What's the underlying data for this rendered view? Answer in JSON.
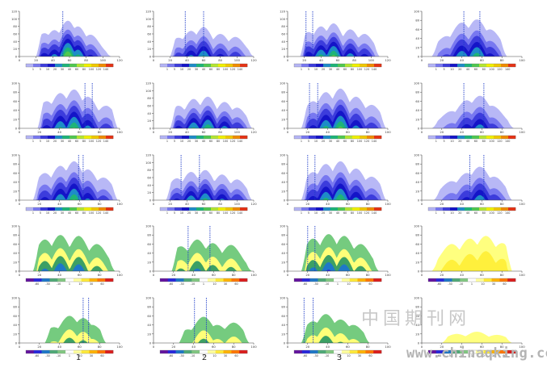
{
  "figure": {
    "column_labels": [
      "1",
      "2",
      "3"
    ],
    "watermark_cn": "中国期刊网",
    "watermark_url": "www.chinaqking.com"
  },
  "palettes": {
    "positive": [
      "#b4b4f5",
      "#7878f0",
      "#3c3cdc",
      "#1414c8",
      "#1e8cc8",
      "#1eb478",
      "#50c850",
      "#b4e632",
      "#f0f000",
      "#f0c800",
      "#f08c00",
      "#e63214"
    ],
    "diverging": [
      "#6414a0",
      "#2828dc",
      "#1e78c8",
      "#50aa78",
      "#82c882",
      "#ffffff",
      "#ffffa0",
      "#ffeb3c",
      "#ffb400",
      "#ff7800",
      "#dc1e1e"
    ]
  },
  "chart_data": [
    {
      "type": "heatmap",
      "row": 1,
      "col": 1,
      "xticks": [
        "0",
        "20",
        "40",
        "60",
        "80",
        "100",
        "120"
      ],
      "yticks": [
        "0",
        "20",
        "40",
        "60",
        "80",
        "100",
        "120"
      ],
      "ylim": [
        0,
        120
      ],
      "xlim": [
        0,
        120
      ],
      "colorbar_ticks": [
        "1",
        "5",
        "10",
        "20",
        "30",
        "40",
        "60",
        "80",
        "100",
        "120",
        "140"
      ],
      "vlines": [
        52
      ],
      "bumps": [
        [
          30,
          62
        ],
        [
          42,
          70
        ],
        [
          58,
          95
        ],
        [
          70,
          80
        ],
        [
          85,
          58
        ]
      ],
      "extent": [
        20,
        110
      ],
      "field": "positive"
    },
    {
      "type": "heatmap",
      "row": 1,
      "col": 2,
      "xticks": [
        "0",
        "20",
        "40",
        "60",
        "80",
        "100",
        "120"
      ],
      "yticks": [
        "0",
        "20",
        "40",
        "60",
        "80",
        "100",
        "120"
      ],
      "ylim": [
        0,
        120
      ],
      "xlim": [
        0,
        120
      ],
      "colorbar_ticks": [
        "1",
        "5",
        "10",
        "20",
        "30",
        "40",
        "60",
        "80",
        "100",
        "120",
        "140"
      ],
      "vlines": [
        38,
        60
      ],
      "bumps": [
        [
          30,
          50
        ],
        [
          45,
          68
        ],
        [
          60,
          78
        ],
        [
          80,
          60
        ],
        [
          98,
          52
        ]
      ],
      "extent": [
        20,
        120
      ],
      "field": "positive"
    },
    {
      "type": "heatmap",
      "row": 1,
      "col": 3,
      "xticks": [
        "0",
        "20",
        "40",
        "60",
        "80",
        "100",
        "120"
      ],
      "yticks": [
        "0",
        "20",
        "40",
        "60",
        "80",
        "100",
        "120"
      ],
      "ylim": [
        0,
        120
      ],
      "xlim": [
        0,
        120
      ],
      "colorbar_ticks": [
        "1",
        "5",
        "10",
        "20",
        "30",
        "40",
        "60",
        "80",
        "100",
        "120",
        "140"
      ],
      "vlines": [
        22,
        30
      ],
      "bumps": [
        [
          25,
          65
        ],
        [
          40,
          80
        ],
        [
          55,
          88
        ],
        [
          75,
          72
        ],
        [
          92,
          60
        ]
      ],
      "extent": [
        15,
        110
      ],
      "field": "positive"
    },
    {
      "type": "heatmap",
      "row": 1,
      "col": 4,
      "xticks": [
        "0",
        "20",
        "40",
        "60",
        "80",
        "100"
      ],
      "yticks": [
        "0",
        "20",
        "40",
        "60",
        "80",
        "100"
      ],
      "ylim": [
        0,
        100
      ],
      "xlim": [
        0,
        100
      ],
      "colorbar_ticks": [
        "1",
        "5",
        "10",
        "20",
        "40",
        "60",
        "80",
        "100",
        "120",
        "140"
      ],
      "vlines": [
        42,
        58
      ],
      "bumps": [
        [
          25,
          45
        ],
        [
          40,
          75
        ],
        [
          55,
          82
        ],
        [
          68,
          60
        ]
      ],
      "extent": [
        10,
        85
      ],
      "field": "positive"
    },
    {
      "type": "heatmap",
      "row": 2,
      "col": 1,
      "xticks": [
        "0",
        "20",
        "40",
        "60",
        "80",
        "100"
      ],
      "yticks": [
        "0",
        "20",
        "40",
        "60",
        "80",
        "100"
      ],
      "ylim": [
        0,
        100
      ],
      "xlim": [
        0,
        110
      ],
      "colorbar_ticks": [
        "1",
        "5",
        "10",
        "20",
        "30",
        "40",
        "60",
        "80",
        "100",
        "120",
        "140"
      ],
      "vlines": [
        72,
        80
      ],
      "bumps": [
        [
          30,
          60
        ],
        [
          45,
          78
        ],
        [
          60,
          86
        ],
        [
          75,
          70
        ],
        [
          95,
          50
        ]
      ],
      "extent": [
        20,
        108
      ],
      "field": "positive"
    },
    {
      "type": "heatmap",
      "row": 2,
      "col": 2,
      "xticks": [
        "0",
        "20",
        "40",
        "60",
        "80",
        "100",
        "120"
      ],
      "yticks": [
        "0",
        "20",
        "40",
        "60",
        "80",
        "100",
        "120"
      ],
      "ylim": [
        0,
        120
      ],
      "xlim": [
        0,
        120
      ],
      "colorbar_ticks": [
        "1",
        "5",
        "10",
        "20",
        "30",
        "40",
        "60",
        "80",
        "100",
        "120",
        "140"
      ],
      "vlines": [],
      "bumps": [
        [
          30,
          60
        ],
        [
          48,
          78
        ],
        [
          65,
          84
        ],
        [
          85,
          70
        ],
        [
          100,
          55
        ]
      ],
      "extent": [
        20,
        118
      ],
      "field": "positive"
    },
    {
      "type": "heatmap",
      "row": 2,
      "col": 3,
      "xticks": [
        "0",
        "20",
        "40",
        "60",
        "80",
        "100"
      ],
      "yticks": [
        "0",
        "20",
        "40",
        "60",
        "80",
        "100"
      ],
      "ylim": [
        0,
        100
      ],
      "xlim": [
        0,
        110
      ],
      "colorbar_ticks": [
        "1",
        "5",
        "10",
        "20",
        "30",
        "40",
        "60",
        "80",
        "100",
        "120",
        "140"
      ],
      "vlines": [
        24,
        33
      ],
      "bumps": [
        [
          28,
          60
        ],
        [
          42,
          80
        ],
        [
          58,
          88
        ],
        [
          75,
          70
        ],
        [
          92,
          52
        ]
      ],
      "extent": [
        15,
        108
      ],
      "field": "positive"
    },
    {
      "type": "heatmap",
      "row": 2,
      "col": 4,
      "xticks": [
        "0",
        "20",
        "40",
        "60",
        "80",
        "100"
      ],
      "yticks": [
        "0",
        "20",
        "40",
        "60",
        "80",
        "100"
      ],
      "ylim": [
        0,
        100
      ],
      "xlim": [
        0,
        100
      ],
      "colorbar_ticks": [
        "1",
        "5",
        "10",
        "20",
        "40",
        "60",
        "80",
        "100",
        "120",
        "140"
      ],
      "vlines": [
        42,
        62
      ],
      "bumps": [
        [
          30,
          38
        ],
        [
          45,
          62
        ],
        [
          58,
          72
        ],
        [
          70,
          50
        ]
      ],
      "extent": [
        10,
        92
      ],
      "field": "positive"
    },
    {
      "type": "heatmap",
      "row": 3,
      "col": 1,
      "xticks": [
        "0",
        "20",
        "40",
        "60",
        "80",
        "100"
      ],
      "yticks": [
        "0",
        "20",
        "40",
        "60",
        "80",
        "100"
      ],
      "ylim": [
        0,
        100
      ],
      "xlim": [
        0,
        110
      ],
      "colorbar_ticks": [
        "1",
        "5",
        "10",
        "20",
        "30",
        "40",
        "60",
        "80",
        "100",
        "120",
        "140"
      ],
      "vlines": [
        65,
        70
      ],
      "bumps": [
        [
          28,
          60
        ],
        [
          45,
          76
        ],
        [
          60,
          86
        ],
        [
          75,
          68
        ],
        [
          92,
          50
        ]
      ],
      "extent": [
        15,
        108
      ],
      "field": "positive"
    },
    {
      "type": "heatmap",
      "row": 3,
      "col": 2,
      "xticks": [
        "0",
        "20",
        "40",
        "60",
        "80",
        "100",
        "120"
      ],
      "yticks": [
        "0",
        "20",
        "40",
        "60",
        "80",
        "100",
        "120"
      ],
      "ylim": [
        0,
        120
      ],
      "xlim": [
        0,
        120
      ],
      "colorbar_ticks": [
        "1",
        "5",
        "10",
        "20",
        "30",
        "40",
        "60",
        "80",
        "100",
        "120",
        "140"
      ],
      "vlines": [
        33,
        55
      ],
      "bumps": [
        [
          28,
          58
        ],
        [
          45,
          75
        ],
        [
          62,
          80
        ],
        [
          82,
          68
        ],
        [
          100,
          55
        ]
      ],
      "extent": [
        15,
        118
      ],
      "field": "positive"
    },
    {
      "type": "heatmap",
      "row": 3,
      "col": 3,
      "xticks": [
        "0",
        "20",
        "40",
        "60",
        "80",
        "100"
      ],
      "yticks": [
        "0",
        "20",
        "40",
        "60",
        "80",
        "100"
      ],
      "ylim": [
        0,
        100
      ],
      "xlim": [
        0,
        110
      ],
      "colorbar_ticks": [
        "1",
        "5",
        "10",
        "20",
        "30",
        "40",
        "60",
        "80",
        "100",
        "120",
        "140"
      ],
      "vlines": [
        22,
        30
      ],
      "bumps": [
        [
          28,
          62
        ],
        [
          42,
          80
        ],
        [
          58,
          86
        ],
        [
          75,
          70
        ],
        [
          92,
          52
        ]
      ],
      "extent": [
        15,
        108
      ],
      "field": "positive"
    },
    {
      "type": "heatmap",
      "row": 3,
      "col": 4,
      "xticks": [
        "0",
        "20",
        "40",
        "60",
        "80",
        "100"
      ],
      "yticks": [
        "0",
        "20",
        "40",
        "60",
        "80",
        "100"
      ],
      "ylim": [
        0,
        100
      ],
      "xlim": [
        0,
        100
      ],
      "colorbar_ticks": [
        "1",
        "5",
        "10",
        "20",
        "40",
        "60",
        "80",
        "100",
        "120",
        "140"
      ],
      "vlines": [
        48,
        62
      ],
      "bumps": [
        [
          30,
          42
        ],
        [
          45,
          60
        ],
        [
          58,
          74
        ],
        [
          72,
          52
        ]
      ],
      "extent": [
        12,
        90
      ],
      "field": "positive"
    },
    {
      "type": "heatmap",
      "row": 4,
      "col": 1,
      "xticks": [
        "0",
        "20",
        "40",
        "60",
        "80",
        "100"
      ],
      "yticks": [
        "0",
        "20",
        "40",
        "60",
        "80",
        "100"
      ],
      "ylim": [
        0,
        100
      ],
      "xlim": [
        0,
        110
      ],
      "colorbar_ticks": [
        "-60",
        "-30",
        "-10",
        "1",
        "10",
        "30",
        "60"
      ],
      "vlines": [],
      "bumps": [
        [
          28,
          70
        ],
        [
          45,
          80
        ],
        [
          65,
          78
        ],
        [
          85,
          60
        ]
      ],
      "extent": [
        15,
        105
      ],
      "field": "diverging"
    },
    {
      "type": "heatmap",
      "row": 4,
      "col": 2,
      "xticks": [
        "0",
        "20",
        "40",
        "60",
        "80",
        "100"
      ],
      "yticks": [
        "0",
        "20",
        "40",
        "60",
        "80",
        "100"
      ],
      "ylim": [
        0,
        100
      ],
      "xlim": [
        0,
        110
      ],
      "colorbar_ticks": [
        "-60",
        "-30",
        "-10",
        "1",
        "10",
        "30",
        "60"
      ],
      "vlines": [
        38,
        62
      ],
      "bumps": [
        [
          30,
          55
        ],
        [
          48,
          70
        ],
        [
          65,
          62
        ],
        [
          85,
          58
        ]
      ],
      "extent": [
        20,
        108
      ],
      "field": "diverging"
    },
    {
      "type": "heatmap",
      "row": 4,
      "col": 3,
      "xticks": [
        "0",
        "20",
        "40",
        "60",
        "80",
        "100"
      ],
      "yticks": [
        "0",
        "20",
        "40",
        "60",
        "80",
        "100"
      ],
      "ylim": [
        0,
        100
      ],
      "xlim": [
        0,
        110
      ],
      "colorbar_ticks": [
        "-60",
        "-30",
        "-10",
        "1",
        "10",
        "30",
        "60"
      ],
      "vlines": [
        22,
        30
      ],
      "bumps": [
        [
          28,
          72
        ],
        [
          45,
          82
        ],
        [
          62,
          78
        ],
        [
          80,
          60
        ]
      ],
      "extent": [
        15,
        100
      ],
      "field": "diverging"
    },
    {
      "type": "heatmap",
      "row": 4,
      "col": 4,
      "xticks": [
        "0",
        "20",
        "40",
        "60",
        "80",
        "100"
      ],
      "yticks": [
        "0",
        "20",
        "40",
        "60",
        "80",
        "100"
      ],
      "ylim": [
        0,
        100
      ],
      "xlim": [
        0,
        100
      ],
      "colorbar_ticks": [
        "-60",
        "-30",
        "-10",
        "1",
        "10",
        "30",
        "60"
      ],
      "vlines": [],
      "bumps": [
        [
          30,
          60
        ],
        [
          48,
          72
        ],
        [
          64,
          78
        ],
        [
          80,
          62
        ]
      ],
      "extent": [
        10,
        90
      ],
      "field": "yellow"
    },
    {
      "type": "heatmap",
      "row": 5,
      "col": 1,
      "xticks": [
        "0",
        "20",
        "40",
        "60",
        "80",
        "100"
      ],
      "yticks": [
        "0",
        "20",
        "40",
        "60",
        "80",
        "100"
      ],
      "ylim": [
        0,
        100
      ],
      "xlim": [
        0,
        110
      ],
      "colorbar_ticks": [
        "-60",
        "-30",
        "-10",
        "1",
        "10",
        "30",
        "60"
      ],
      "vlines": [
        70,
        76
      ],
      "bumps": [
        [
          38,
          35
        ],
        [
          55,
          60
        ],
        [
          70,
          55
        ],
        [
          80,
          40
        ]
      ],
      "extent": [
        28,
        95
      ],
      "field": "diverging"
    },
    {
      "type": "heatmap",
      "row": 5,
      "col": 2,
      "xticks": [
        "0",
        "20",
        "40",
        "60",
        "80",
        "100"
      ],
      "yticks": [
        "0",
        "20",
        "40",
        "60",
        "80",
        "100"
      ],
      "ylim": [
        0,
        100
      ],
      "xlim": [
        0,
        110
      ],
      "colorbar_ticks": [
        "-60",
        "-30",
        "-10",
        "1",
        "10",
        "30",
        "60"
      ],
      "vlines": [
        45,
        58
      ],
      "bumps": [
        [
          38,
          30
        ],
        [
          55,
          58
        ],
        [
          70,
          40
        ],
        [
          88,
          45
        ]
      ],
      "extent": [
        28,
        105
      ],
      "field": "diverging"
    },
    {
      "type": "heatmap",
      "row": 5,
      "col": 3,
      "xticks": [
        "0",
        "20",
        "40",
        "60",
        "80",
        "100"
      ],
      "yticks": [
        "0",
        "20",
        "40",
        "60",
        "80",
        "100"
      ],
      "ylim": [
        0,
        100
      ],
      "xlim": [
        0,
        110
      ],
      "colorbar_ticks": [
        "-60",
        "-30",
        "-10",
        "1",
        "10",
        "30",
        "60"
      ],
      "vlines": [
        18,
        28
      ],
      "bumps": [
        [
          28,
          48
        ],
        [
          42,
          64
        ],
        [
          58,
          52
        ],
        [
          72,
          40
        ]
      ],
      "extent": [
        15,
        90
      ],
      "field": "diverging"
    },
    {
      "type": "heatmap",
      "row": 5,
      "col": 4,
      "xticks": [
        "0",
        "20",
        "40",
        "60",
        "80",
        "100"
      ],
      "yticks": [
        "0",
        "20",
        "40",
        "60",
        "80",
        "100"
      ],
      "ylim": [
        0,
        100
      ],
      "xlim": [
        0,
        100
      ],
      "colorbar_ticks": [
        "-60",
        "-30",
        "-10",
        "1",
        "10",
        "30",
        "60"
      ],
      "vlines": [],
      "bumps": [
        [
          35,
          20
        ],
        [
          55,
          25
        ],
        [
          75,
          18
        ]
      ],
      "extent": [
        20,
        90
      ],
      "field": "yellow"
    }
  ]
}
